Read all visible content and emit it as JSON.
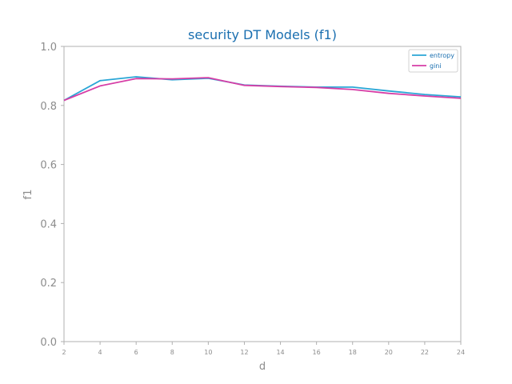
{
  "chart_data": {
    "type": "line",
    "title": "security DT Models (f1)",
    "xlabel": "d",
    "ylabel": "f1",
    "x": [
      2,
      4,
      6,
      8,
      10,
      12,
      14,
      16,
      18,
      20,
      22,
      24
    ],
    "xlim": [
      2,
      24
    ],
    "ylim": [
      0,
      1
    ],
    "yticks": [
      "0.0",
      "0.2",
      "0.4",
      "0.6",
      "0.8",
      "1.0"
    ],
    "ytick_values": [
      0,
      0.2,
      0.4,
      0.6,
      0.8,
      1.0
    ],
    "xticks": [
      "2",
      "4",
      "6",
      "8",
      "10",
      "12",
      "14",
      "16",
      "18",
      "20",
      "22",
      "24"
    ],
    "legend_position": "upper-right",
    "grid": false,
    "series": [
      {
        "name": "entropy",
        "color": "#2aa6d6",
        "values": [
          0.817,
          0.884,
          0.897,
          0.887,
          0.892,
          0.869,
          0.865,
          0.862,
          0.862,
          0.849,
          0.837,
          0.829
        ]
      },
      {
        "name": "gini",
        "color": "#d63ea6",
        "values": [
          0.817,
          0.866,
          0.891,
          0.89,
          0.894,
          0.868,
          0.864,
          0.861,
          0.854,
          0.841,
          0.832,
          0.824
        ]
      }
    ]
  }
}
